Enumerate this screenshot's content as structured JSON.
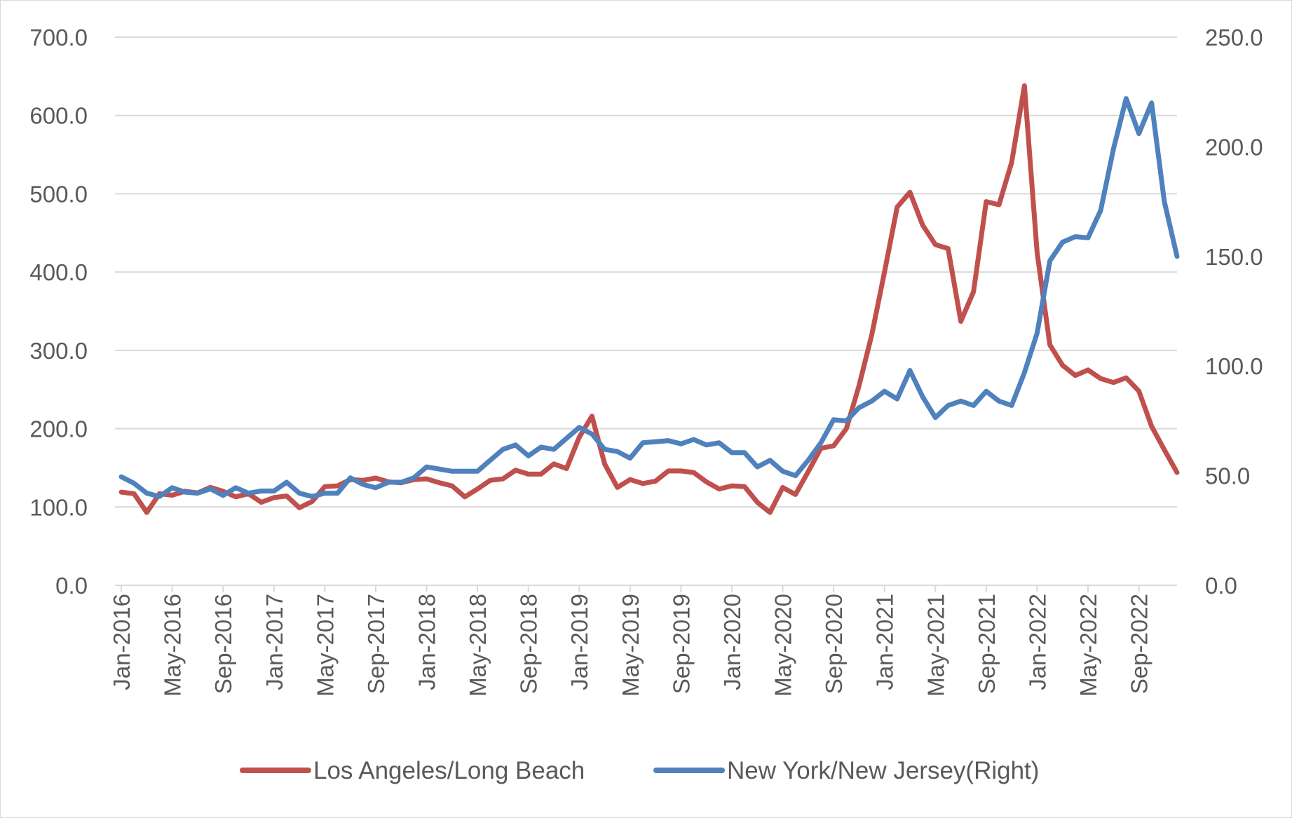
{
  "chart_data": {
    "type": "line",
    "title": "",
    "xlabel": "",
    "ylabel": "",
    "y2label": "",
    "grid": true,
    "legend_position": "bottom",
    "ylim": [
      0,
      700
    ],
    "y_ticks": [
      "0.0",
      "100.0",
      "200.0",
      "300.0",
      "400.0",
      "500.0",
      "600.0",
      "700.0"
    ],
    "y2lim": [
      0,
      250
    ],
    "y2_ticks": [
      "0.0",
      "50.0",
      "100.0",
      "150.0",
      "200.0",
      "250.0"
    ],
    "x_labels": [
      "Jan-2016",
      "May-2016",
      "Sep-2016",
      "Jan-2017",
      "May-2017",
      "Sep-2017",
      "Jan-2018",
      "May-2018",
      "Sep-2018",
      "Jan-2019",
      "May-2019",
      "Sep-2019",
      "Jan-2020",
      "May-2020",
      "Sep-2020",
      "Jan-2021",
      "May-2021",
      "Sep-2021",
      "Jan-2022",
      "May-2022",
      "Sep-2022"
    ],
    "x_start": "Jan-2016",
    "series": [
      {
        "name": "Los Angeles/Long Beach",
        "axis": "left",
        "color": "#c0504d",
        "values": [
          119,
          117,
          93,
          117,
          115,
          120,
          118,
          125,
          120,
          113,
          117,
          106,
          112,
          114,
          99,
          107,
          126,
          127,
          135,
          134,
          137,
          132,
          131,
          135,
          136,
          131,
          127,
          113,
          123,
          134,
          136,
          147,
          142,
          142,
          155,
          149,
          189,
          216,
          155,
          125,
          135,
          130,
          133,
          146,
          146,
          144,
          132,
          123,
          127,
          126,
          106,
          93,
          125,
          116,
          145,
          175,
          178,
          200,
          255,
          320,
          400,
          483,
          502,
          460,
          435,
          430,
          337,
          375,
          490,
          486,
          540,
          638,
          425,
          307,
          281,
          268,
          275,
          264,
          259,
          265,
          248,
          203,
          173,
          144
        ]
      },
      {
        "name": "New York/New Jersey(Right)",
        "axis": "right",
        "color": "#4f81bd",
        "values": [
          49.5,
          46.5,
          42,
          40.5,
          44.5,
          42.5,
          42,
          44,
          41,
          44.5,
          42,
          43,
          43,
          47,
          42,
          40.5,
          42,
          42,
          49,
          46,
          44.5,
          47,
          47,
          49,
          54,
          53,
          52,
          52,
          52,
          57,
          62,
          64,
          59,
          63,
          62,
          67,
          72,
          69,
          62,
          61,
          58,
          65,
          65.5,
          66,
          64.5,
          66.5,
          64,
          65,
          60.5,
          60.5,
          54,
          57,
          52,
          50,
          57,
          65,
          75.5,
          75,
          81,
          84,
          88.5,
          85,
          98,
          86,
          76.5,
          82,
          84,
          82,
          88.5,
          84,
          82,
          97,
          115,
          148,
          156.5,
          159,
          158.5,
          171,
          199,
          222,
          206,
          220,
          175,
          150
        ]
      }
    ]
  }
}
